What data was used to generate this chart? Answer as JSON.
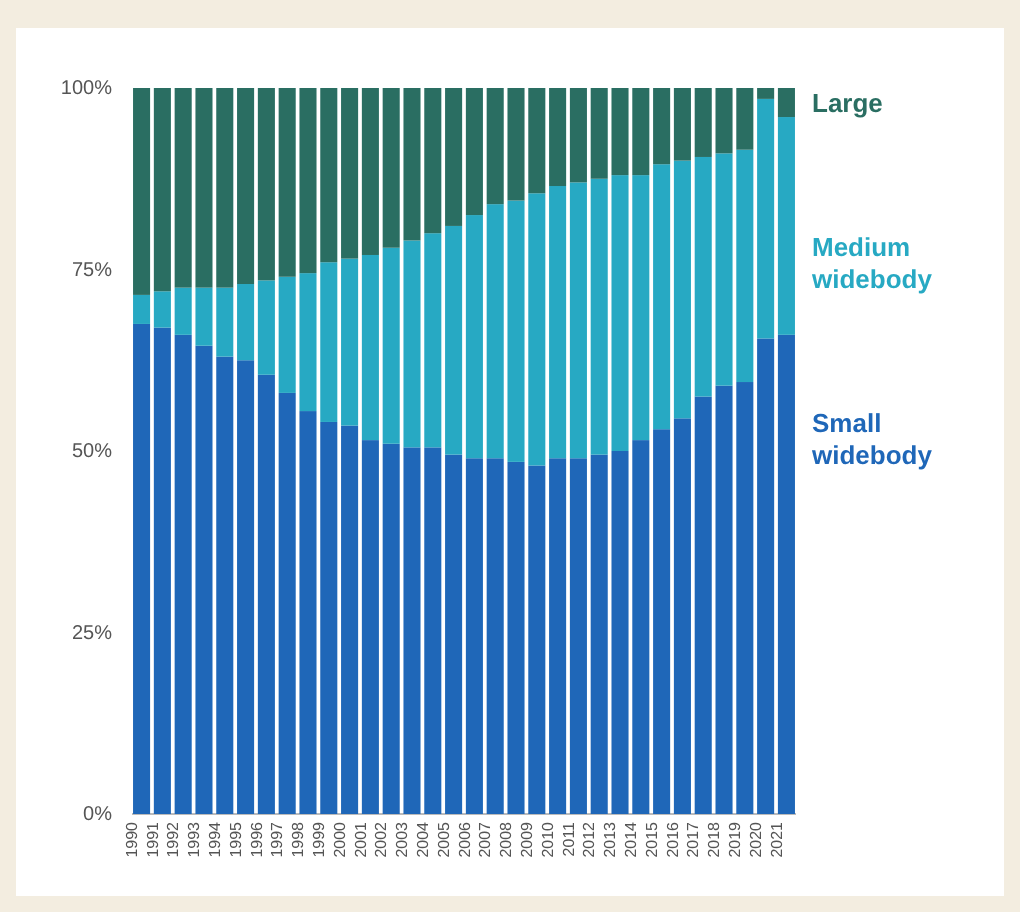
{
  "chart_data": {
    "type": "bar",
    "stacked": true,
    "legend": "right",
    "categories": [
      "1990",
      "1991",
      "1992",
      "1993",
      "1994",
      "1995",
      "1996",
      "1997",
      "1998",
      "1999",
      "2000",
      "2001",
      "2002",
      "2003",
      "2004",
      "2005",
      "2006",
      "2007",
      "2008",
      "2009",
      "2010",
      "2011",
      "2012",
      "2013",
      "2014",
      "2015",
      "2016",
      "2017",
      "2018",
      "2019",
      "2020",
      "2021"
    ],
    "series": [
      {
        "name": "Small widebody",
        "color": "#1f67b8",
        "values": [
          67.5,
          67,
          66,
          64.5,
          63,
          62.5,
          60.5,
          58,
          55.5,
          54,
          53.5,
          51.5,
          51,
          50.5,
          50.5,
          49.5,
          49,
          49,
          48.5,
          48,
          49,
          49,
          49.5,
          50,
          51.5,
          53,
          54.5,
          57.5,
          59,
          59.5,
          65.5,
          66
        ]
      },
      {
        "name": "Medium widebody",
        "color": "#27a9c3",
        "values": [
          4,
          5,
          6.5,
          8,
          9.5,
          10.5,
          13,
          16,
          19,
          22,
          23,
          25.5,
          27,
          28.5,
          29.5,
          31.5,
          33.5,
          35,
          36,
          37.5,
          37.5,
          38,
          38,
          38,
          36.5,
          36.5,
          35.5,
          33,
          32,
          32,
          33,
          30
        ]
      },
      {
        "name": "Large",
        "color": "#2a6e62",
        "values": [
          28.5,
          28,
          27.5,
          27.5,
          27.5,
          27,
          26.5,
          26,
          25.5,
          24,
          23.5,
          23,
          22,
          21,
          20,
          19,
          17.5,
          16,
          15.5,
          14.5,
          13.5,
          13,
          12.5,
          12,
          12,
          10.5,
          10,
          9.5,
          9,
          8.5,
          1.5,
          4
        ]
      }
    ],
    "ylim": [
      0,
      100
    ],
    "yticks": [
      {
        "value": 0,
        "label": "0%"
      },
      {
        "value": 25,
        "label": "25%"
      },
      {
        "value": 50,
        "label": "50%"
      },
      {
        "value": 75,
        "label": "75%"
      },
      {
        "value": 100,
        "label": "100%"
      }
    ]
  }
}
